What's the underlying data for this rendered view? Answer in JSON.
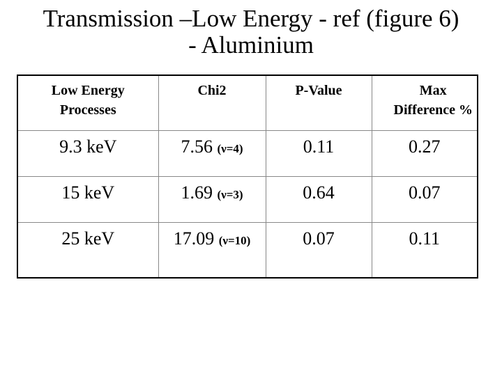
{
  "title": [
    "Transmission –Low Energy - ref (figure 6)",
    "- Aluminium"
  ],
  "table": {
    "header": [
      "Low Energy Processes",
      "Chi2",
      "P-Value",
      "Max Difference %"
    ],
    "rows": [
      {
        "energy": "9.3 keV",
        "chi2": "7.56",
        "dof": "(ν=4)",
        "p_value": "0.11",
        "max_difference": "0.27"
      },
      {
        "energy": "15 keV",
        "chi2": "1.69",
        "dof": "(ν=3)",
        "p_value": "0.64",
        "max_difference": "0.07"
      },
      {
        "energy": "25 keV",
        "chi2": "17.09",
        "dof": "(ν=10)",
        "p_value": "0.07",
        "max_difference": "0.11"
      }
    ]
  }
}
